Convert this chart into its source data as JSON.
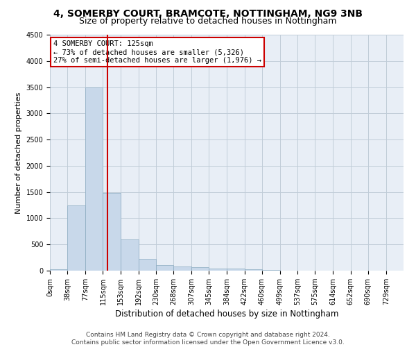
{
  "title": "4, SOMERBY COURT, BRAMCOTE, NOTTINGHAM, NG9 3NB",
  "subtitle": "Size of property relative to detached houses in Nottingham",
  "xlabel": "Distribution of detached houses by size in Nottingham",
  "ylabel": "Number of detached properties",
  "bar_color": "#c8d8ea",
  "bar_edge_color": "#8aaac0",
  "grid_color": "#c0ccd8",
  "background_color": "#e8eef6",
  "vline_x": 125,
  "vline_color": "#cc0000",
  "annotation_text": "4 SOMERBY COURT: 125sqm\n← 73% of detached houses are smaller (5,326)\n27% of semi-detached houses are larger (1,976) →",
  "annotation_box_color": "#ffffff",
  "annotation_border_color": "#cc0000",
  "bin_edges": [
    0,
    38,
    77,
    115,
    153,
    192,
    230,
    268,
    307,
    345,
    384,
    422,
    460,
    499,
    537,
    575,
    614,
    652,
    690,
    729,
    767
  ],
  "bin_counts": [
    30,
    1250,
    3500,
    1480,
    600,
    230,
    110,
    80,
    60,
    45,
    35,
    30,
    10,
    3,
    0,
    0,
    0,
    0,
    5,
    0
  ],
  "ylim": [
    0,
    4500
  ],
  "yticks": [
    0,
    500,
    1000,
    1500,
    2000,
    2500,
    3000,
    3500,
    4000,
    4500
  ],
  "footer_text": "Contains HM Land Registry data © Crown copyright and database right 2024.\nContains public sector information licensed under the Open Government Licence v3.0.",
  "title_fontsize": 10,
  "subtitle_fontsize": 9,
  "xlabel_fontsize": 8.5,
  "ylabel_fontsize": 8,
  "tick_fontsize": 7,
  "footer_fontsize": 6.5,
  "annotation_fontsize": 7.5
}
